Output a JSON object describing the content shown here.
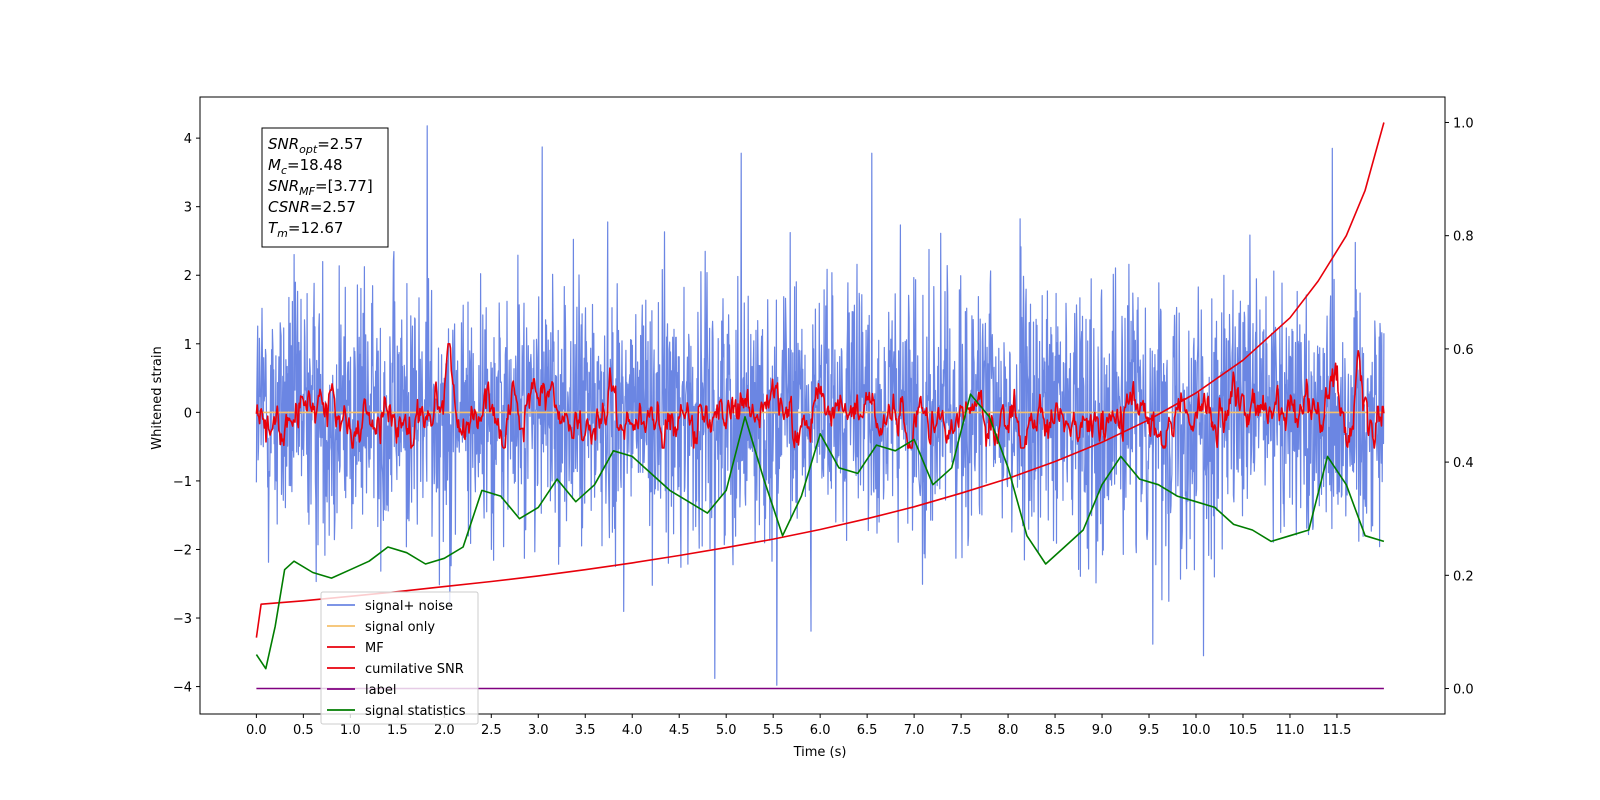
{
  "chart_data": {
    "type": "line",
    "xlabel": "Time (s)",
    "ylabel": "Whitened strain",
    "xlim": [
      -0.6,
      12.65
    ],
    "ylim": [
      -4.4,
      4.6
    ],
    "y2lim": [
      -0.045,
      1.045
    ],
    "x_ticks": [
      "0.0",
      "0.5",
      "1.0",
      "1.5",
      "2.0",
      "2.5",
      "3.0",
      "3.5",
      "4.0",
      "4.5",
      "5.0",
      "5.5",
      "6.0",
      "6.5",
      "7.0",
      "7.5",
      "8.0",
      "8.5",
      "9.0",
      "9.5",
      "10.0",
      "10.5",
      "11.0",
      "11.5"
    ],
    "y_ticks": [
      "−4",
      "−3",
      "−2",
      "−1",
      "0",
      "1",
      "2",
      "3",
      "4"
    ],
    "y2_ticks": [
      "0.0",
      "0.2",
      "0.4",
      "0.6",
      "0.8",
      "1.0"
    ],
    "annotation": [
      {
        "base": "SNR",
        "sub": "opt",
        "value": "=2.57"
      },
      {
        "base": "M",
        "sub": "c",
        "value": "=18.48"
      },
      {
        "base": "SNR",
        "sub": "MF",
        "value": "=[3.77]"
      },
      {
        "base": "CSNR",
        "sub": "",
        "value": "=2.57"
      },
      {
        "base": "T",
        "sub": "m",
        "value": "=12.67"
      }
    ],
    "legend_position": "lower-left",
    "series": [
      {
        "name": "signal+ noise",
        "color": "#6b86e3",
        "axis": "left",
        "kind": "noise",
        "x_range": [
          0,
          12.0
        ],
        "std": 1.0,
        "extremes": [
          {
            "x": 1.82,
            "y": 4.18
          },
          {
            "x": 4.88,
            "y": -3.88
          },
          {
            "x": 5.54,
            "y": -3.98
          },
          {
            "x": 9.54,
            "y": -3.38
          },
          {
            "x": 10.08,
            "y": -3.55
          },
          {
            "x": 11.45,
            "y": 3.85
          },
          {
            "x": 3.04,
            "y": 3.87
          },
          {
            "x": 5.16,
            "y": 3.78
          },
          {
            "x": 6.55,
            "y": 3.78
          }
        ]
      },
      {
        "name": "signal only",
        "color": "#f5c06b",
        "axis": "left",
        "kind": "flat",
        "x": [
          0,
          12.0
        ],
        "y": [
          0,
          0
        ]
      },
      {
        "name": "MF",
        "color": "#e8000b",
        "axis": "left",
        "kind": "mf",
        "x_range": [
          0,
          12.0
        ],
        "peaks": [
          {
            "x": 2.05,
            "y": 0.98
          },
          {
            "x": 3.78,
            "y": 0.95
          },
          {
            "x": 6.0,
            "y": 0.75
          },
          {
            "x": 7.68,
            "y": 0.6
          },
          {
            "x": 11.45,
            "y": 0.9
          },
          {
            "x": 11.72,
            "y": 0.88
          }
        ]
      },
      {
        "name": "cumilative SNR",
        "color": "#e8000b",
        "axis": "right",
        "x": [
          0,
          0.05,
          0.5,
          1,
          1.5,
          2,
          2.5,
          3,
          3.5,
          4,
          4.5,
          5,
          5.5,
          6,
          6.5,
          7,
          7.5,
          8,
          8.5,
          9,
          9.5,
          10,
          10.5,
          11,
          11.3,
          11.6,
          11.8,
          11.9,
          12.0
        ],
        "y": [
          0.09,
          0.149,
          0.155,
          0.163,
          0.171,
          0.18,
          0.189,
          0.199,
          0.21,
          0.222,
          0.235,
          0.249,
          0.264,
          0.281,
          0.3,
          0.321,
          0.345,
          0.371,
          0.401,
          0.435,
          0.475,
          0.522,
          0.58,
          0.655,
          0.72,
          0.8,
          0.88,
          0.94,
          1.0
        ]
      },
      {
        "name": "label",
        "color": "#800080",
        "axis": "right",
        "x": [
          0,
          12.0
        ],
        "y": [
          0.0,
          0.0
        ]
      },
      {
        "name": "signal statistics",
        "color": "#007d00",
        "axis": "right",
        "x": [
          0.0,
          0.1,
          0.2,
          0.3,
          0.4,
          0.6,
          0.8,
          1.0,
          1.2,
          1.4,
          1.6,
          1.8,
          2.0,
          2.2,
          2.4,
          2.6,
          2.8,
          3.0,
          3.2,
          3.4,
          3.6,
          3.8,
          4.0,
          4.2,
          4.4,
          4.6,
          4.8,
          5.0,
          5.2,
          5.4,
          5.6,
          5.8,
          6.0,
          6.2,
          6.4,
          6.6,
          6.8,
          7.0,
          7.2,
          7.4,
          7.6,
          7.8,
          8.0,
          8.2,
          8.4,
          8.6,
          8.8,
          9.0,
          9.2,
          9.4,
          9.6,
          9.8,
          10.0,
          10.2,
          10.4,
          10.6,
          10.8,
          11.0,
          11.2,
          11.4,
          11.6,
          11.8,
          12.0
        ],
        "y": [
          0.06,
          0.035,
          0.11,
          0.21,
          0.225,
          0.205,
          0.195,
          0.21,
          0.225,
          0.25,
          0.24,
          0.22,
          0.23,
          0.25,
          0.35,
          0.34,
          0.3,
          0.32,
          0.37,
          0.33,
          0.36,
          0.42,
          0.41,
          0.38,
          0.35,
          0.33,
          0.31,
          0.35,
          0.48,
          0.37,
          0.27,
          0.34,
          0.45,
          0.39,
          0.38,
          0.43,
          0.42,
          0.44,
          0.36,
          0.39,
          0.52,
          0.48,
          0.39,
          0.27,
          0.22,
          0.25,
          0.28,
          0.36,
          0.41,
          0.37,
          0.36,
          0.34,
          0.33,
          0.32,
          0.29,
          0.28,
          0.26,
          0.27,
          0.28,
          0.41,
          0.36,
          0.27,
          0.26
        ]
      }
    ]
  }
}
